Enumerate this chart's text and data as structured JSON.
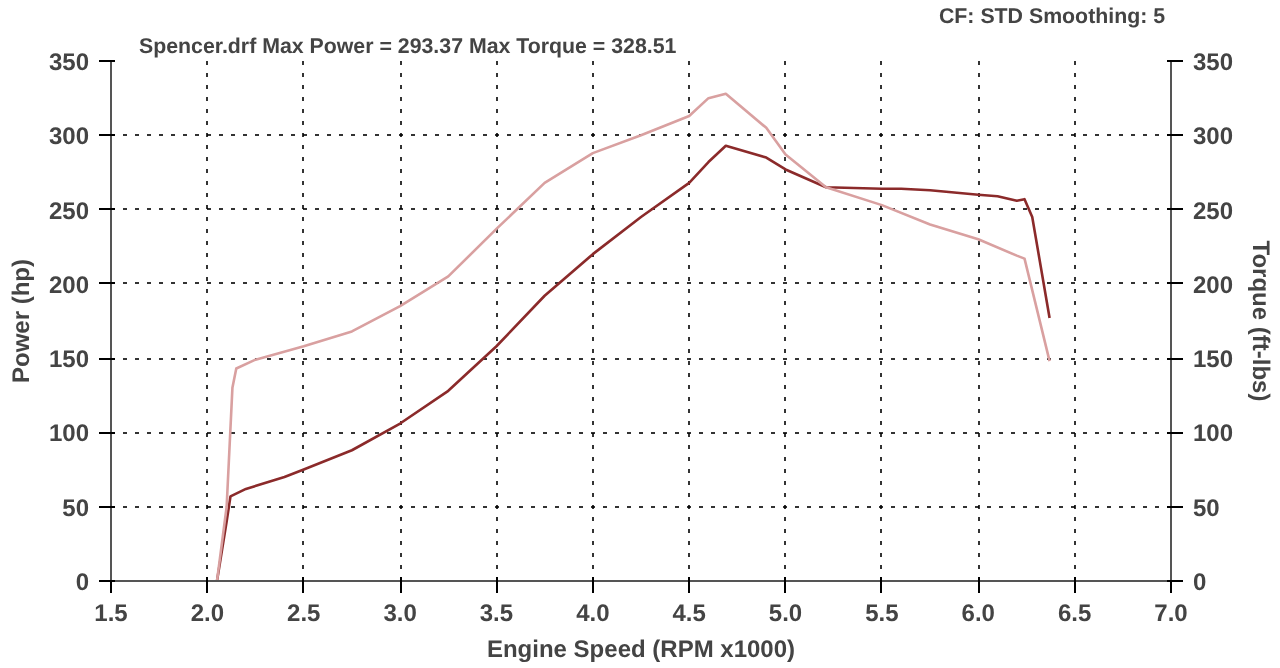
{
  "chart_data": {
    "type": "line",
    "xlabel": "Engine Speed (RPM x1000)",
    "ylabel": "Power (hp)",
    "y2label": "Torque (ft-lbs)",
    "annotations": [
      "Spencer.drf Max Power = 293.37     Max Torque = 328.51",
      "CF: STD  Smoothing: 5"
    ],
    "xlim": [
      1.5,
      7.0
    ],
    "xticks": [
      {
        "value": 1.5,
        "label": "1.5"
      },
      {
        "value": 2.0,
        "label": "2.0"
      },
      {
        "value": 2.5,
        "label": "2.5"
      },
      {
        "value": 3.0,
        "label": "3.0"
      },
      {
        "value": 3.5,
        "label": "3.5"
      },
      {
        "value": 4.0,
        "label": "4.0"
      },
      {
        "value": 4.5,
        "label": "4.5"
      },
      {
        "value": 5.0,
        "label": "5.0"
      },
      {
        "value": 5.5,
        "label": "5.5"
      },
      {
        "value": 6.0,
        "label": "6.0"
      },
      {
        "value": 6.5,
        "label": "6.5"
      },
      {
        "value": 7.0,
        "label": "7.0"
      }
    ],
    "ylim": [
      0,
      350
    ],
    "yticks": [
      0,
      50,
      100,
      150,
      200,
      250,
      300,
      350
    ],
    "y2lim": [
      0,
      350
    ],
    "y2ticks": [
      0,
      50,
      100,
      150,
      200,
      250,
      300,
      350
    ],
    "grid": true,
    "series": [
      {
        "color": "#8b2a2a",
        "x": [
          2.05,
          2.1,
          2.12,
          2.2,
          2.4,
          2.5,
          2.75,
          3.0,
          3.25,
          3.5,
          3.75,
          4.0,
          4.25,
          4.5,
          4.6,
          4.69,
          4.9,
          5.0,
          5.21,
          5.5,
          5.6,
          5.75,
          6.0,
          6.1,
          6.2,
          6.24,
          6.28,
          6.37
        ],
        "values": [
          0,
          40,
          57,
          62,
          70,
          75,
          88,
          106,
          128,
          158,
          192,
          220,
          245,
          268,
          282,
          293,
          285,
          277,
          265,
          264,
          264,
          263,
          260,
          259,
          256,
          257,
          245,
          177
        ]
      },
      {
        "color": "#d9a0a0",
        "x": [
          2.05,
          2.1,
          2.13,
          2.15,
          2.25,
          2.5,
          2.75,
          3.0,
          3.25,
          3.5,
          3.75,
          4.0,
          4.25,
          4.5,
          4.6,
          4.69,
          4.9,
          5.0,
          5.21,
          5.5,
          5.75,
          6.0,
          6.2,
          6.24,
          6.37
        ],
        "values": [
          0,
          50,
          130,
          143,
          149,
          158,
          168,
          185,
          205,
          237,
          268,
          288,
          300,
          313,
          325,
          328,
          305,
          287,
          265,
          253,
          240,
          230,
          219,
          217,
          148
        ]
      }
    ]
  }
}
